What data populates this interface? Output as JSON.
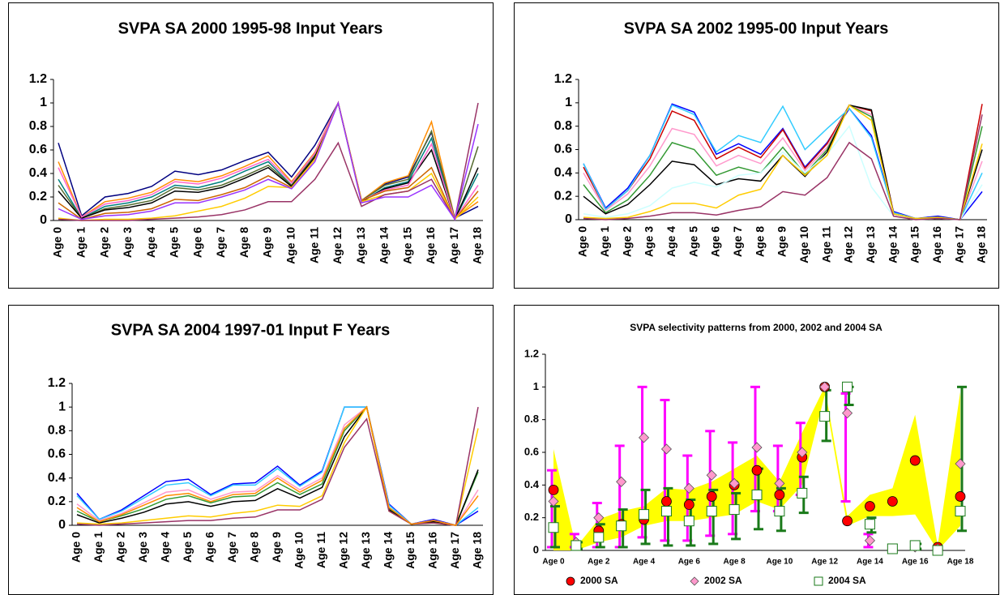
{
  "chart_data": [
    {
      "type": "line",
      "title": "SVPA SA 2000 1995-98 Input Years",
      "categories": [
        "Age 0",
        "Age 1",
        "Age 2",
        "Age 3",
        "Age 4",
        "Age 5",
        "Age 6",
        "Age 7",
        "Age 8",
        "Age 9",
        "Age 10",
        "Age 11",
        "Age 12",
        "Age 13",
        "Age 14",
        "Age 15",
        "Age 16",
        "Age 17",
        "Age 18"
      ],
      "ylim": [
        0,
        1.2
      ],
      "yticks": [
        0,
        0.2,
        0.4,
        0.6,
        0.8,
        1,
        1.2
      ],
      "grid": false,
      "series": [
        {
          "color": "#000080",
          "values": [
            0.66,
            0.04,
            0.2,
            0.23,
            0.29,
            0.42,
            0.39,
            0.43,
            0.51,
            0.58,
            0.37,
            0.64,
            1,
            0.17,
            0.31,
            0.37,
            0.75,
            0.02,
            0.12
          ]
        },
        {
          "color": "#ff8c00",
          "values": [
            0.5,
            0.03,
            0.16,
            0.19,
            0.24,
            0.35,
            0.33,
            0.38,
            0.46,
            0.55,
            0.33,
            0.58,
            1,
            0.17,
            0.32,
            0.38,
            0.84,
            0.02,
            0.16
          ]
        },
        {
          "color": "#008080",
          "values": [
            0.35,
            0.02,
            0.12,
            0.15,
            0.2,
            0.3,
            0.28,
            0.33,
            0.42,
            0.5,
            0.3,
            0.56,
            1,
            0.16,
            0.28,
            0.33,
            0.7,
            0.01,
            0.4
          ]
        },
        {
          "color": "#556b2f",
          "values": [
            0.3,
            0.02,
            0.1,
            0.13,
            0.17,
            0.28,
            0.26,
            0.3,
            0.38,
            0.47,
            0.3,
            0.55,
            1,
            0.17,
            0.3,
            0.35,
            0.76,
            0.02,
            0.63
          ]
        },
        {
          "color": "#000000",
          "values": [
            0.25,
            0.02,
            0.09,
            0.11,
            0.15,
            0.25,
            0.24,
            0.28,
            0.36,
            0.45,
            0.29,
            0.54,
            1,
            0.16,
            0.27,
            0.32,
            0.6,
            0.01,
            0.45
          ]
        },
        {
          "color": "#ff66cc",
          "values": [
            0.45,
            0.03,
            0.14,
            0.17,
            0.22,
            0.33,
            0.31,
            0.36,
            0.44,
            0.52,
            0.32,
            0.57,
            1,
            0.17,
            0.26,
            0.3,
            0.65,
            0.01,
            0.3
          ]
        },
        {
          "color": "#cc6600",
          "values": [
            0.15,
            0.01,
            0.06,
            0.07,
            0.1,
            0.18,
            0.17,
            0.22,
            0.28,
            0.38,
            0.28,
            0.52,
            1,
            0.17,
            0.25,
            0.28,
            0.45,
            0.01,
            0.25
          ]
        },
        {
          "color": "#ffcc00",
          "values": [
            0.02,
            0,
            0.01,
            0.01,
            0.02,
            0.04,
            0.08,
            0.12,
            0.19,
            0.29,
            0.28,
            0.52,
            1,
            0.16,
            0.22,
            0.25,
            0.4,
            0.01,
            0.2
          ]
        },
        {
          "color": "#993366",
          "values": [
            0.01,
            0,
            0,
            0,
            0.01,
            0.02,
            0.03,
            0.05,
            0.09,
            0.16,
            0.16,
            0.35,
            0.66,
            0.12,
            0.22,
            0.25,
            0.35,
            0.01,
            1
          ]
        },
        {
          "color": "#9933ff",
          "values": [
            0.1,
            0.01,
            0.04,
            0.05,
            0.08,
            0.15,
            0.15,
            0.2,
            0.26,
            0.35,
            0.27,
            0.5,
            1,
            0.15,
            0.2,
            0.2,
            0.3,
            0.01,
            0.82
          ]
        }
      ]
    },
    {
      "type": "line",
      "title": "SVPA SA 2002 1995-00 Input Years",
      "categories": [
        "Age 0",
        "Age 1",
        "Age 2",
        "Age 3",
        "Age 4",
        "Age 5",
        "Age 6",
        "Age 7",
        "Age 8",
        "Age 9",
        "Age 10",
        "Age 11",
        "Age 12",
        "Age 13",
        "Age 14",
        "Age 15",
        "Age 16",
        "Age 17",
        "Age 18"
      ],
      "ylim": [
        0,
        1.2
      ],
      "yticks": [
        0,
        0.2,
        0.4,
        0.6,
        0.8,
        1,
        1.2
      ],
      "grid": false,
      "series": [
        {
          "color": "#0000ff",
          "values": [
            0.48,
            0.1,
            0.27,
            0.55,
            0.99,
            0.92,
            0.56,
            0.65,
            0.56,
            0.78,
            0.45,
            0.66,
            0.95,
            0.72,
            0.07,
            0.01,
            0.03,
            0,
            0.24
          ]
        },
        {
          "color": "#cc0000",
          "values": [
            0.45,
            0.09,
            0.25,
            0.52,
            0.93,
            0.85,
            0.52,
            0.62,
            0.53,
            0.77,
            0.44,
            0.65,
            0.98,
            0.93,
            0.06,
            0.01,
            0.02,
            0,
            0.99
          ]
        },
        {
          "color": "#ff99cc",
          "values": [
            0.4,
            0.08,
            0.22,
            0.46,
            0.78,
            0.73,
            0.46,
            0.55,
            0.48,
            0.7,
            0.42,
            0.62,
            0.98,
            0.9,
            0.05,
            0.01,
            0.02,
            0,
            0.5
          ]
        },
        {
          "color": "#339933",
          "values": [
            0.3,
            0.06,
            0.17,
            0.38,
            0.66,
            0.6,
            0.38,
            0.45,
            0.4,
            0.62,
            0.39,
            0.6,
            0.98,
            0.88,
            0.05,
            0.01,
            0.02,
            0,
            0.8
          ]
        },
        {
          "color": "#000000",
          "values": [
            0.2,
            0.05,
            0.13,
            0.3,
            0.5,
            0.47,
            0.3,
            0.35,
            0.33,
            0.55,
            0.37,
            0.58,
            0.98,
            0.94,
            0.05,
            0.01,
            0.02,
            0,
            0.6
          ]
        },
        {
          "color": "#33ccff",
          "values": [
            0.48,
            0.09,
            0.25,
            0.55,
            0.98,
            0.9,
            0.58,
            0.72,
            0.66,
            0.97,
            0.6,
            0.78,
            0.95,
            0.7,
            0.06,
            0.01,
            0.02,
            0,
            0.4
          ]
        },
        {
          "color": "#ccffff",
          "values": [
            0.05,
            0.02,
            0.05,
            0.12,
            0.27,
            0.32,
            0.28,
            0.38,
            0.4,
            0.58,
            0.4,
            0.56,
            0.8,
            0.28,
            0.03,
            0,
            0.01,
            0,
            0.3
          ]
        },
        {
          "color": "#ffcc00",
          "values": [
            0.02,
            0.01,
            0.02,
            0.07,
            0.14,
            0.14,
            0.1,
            0.21,
            0.26,
            0.55,
            0.38,
            0.55,
            0.98,
            0.85,
            0.05,
            0.01,
            0.02,
            0,
            0.65
          ]
        },
        {
          "color": "#993366",
          "values": [
            0.01,
            0,
            0.01,
            0.03,
            0.06,
            0.06,
            0.04,
            0.08,
            0.11,
            0.24,
            0.21,
            0.36,
            0.66,
            0.52,
            0.03,
            0,
            0.01,
            0,
            0.9
          ]
        }
      ]
    },
    {
      "type": "line",
      "title": "SVPA SA 2004 1997-01 Input F Years",
      "categories": [
        "Age 0",
        "Age 1",
        "Age 2",
        "Age 3",
        "Age 4",
        "Age 5",
        "Age 6",
        "Age 7",
        "Age 8",
        "Age 9",
        "Age 10",
        "Age 11",
        "Age 12",
        "Age 13",
        "Age 14",
        "Age 15",
        "Age 16",
        "Age 17",
        "Age 18"
      ],
      "ylim": [
        0,
        1.2
      ],
      "yticks": [
        0,
        0.2,
        0.4,
        0.6,
        0.8,
        1,
        1.2
      ],
      "grid": false,
      "series": [
        {
          "color": "#0000ff",
          "values": [
            0.27,
            0.05,
            0.13,
            0.25,
            0.37,
            0.39,
            0.26,
            0.35,
            0.36,
            0.5,
            0.34,
            0.46,
            1,
            1,
            0.18,
            0.01,
            0.05,
            0,
            0.12
          ]
        },
        {
          "color": "#33ccff",
          "values": [
            0.25,
            0.05,
            0.12,
            0.23,
            0.34,
            0.36,
            0.25,
            0.34,
            0.34,
            0.48,
            0.33,
            0.45,
            1,
            1,
            0.17,
            0.01,
            0.04,
            0,
            0.15
          ]
        },
        {
          "color": "#ff99cc",
          "values": [
            0.18,
            0.04,
            0.1,
            0.19,
            0.28,
            0.3,
            0.22,
            0.28,
            0.29,
            0.42,
            0.3,
            0.4,
            0.85,
            1,
            0.15,
            0.01,
            0.04,
            0,
            0.3
          ]
        },
        {
          "color": "#339933",
          "values": [
            0.12,
            0.03,
            0.08,
            0.14,
            0.22,
            0.25,
            0.19,
            0.24,
            0.25,
            0.36,
            0.26,
            0.35,
            0.8,
            1,
            0.14,
            0.01,
            0.03,
            0,
            0.45
          ]
        },
        {
          "color": "#000000",
          "values": [
            0.09,
            0.02,
            0.06,
            0.11,
            0.18,
            0.2,
            0.16,
            0.2,
            0.21,
            0.31,
            0.23,
            0.32,
            0.75,
            1,
            0.13,
            0.01,
            0.03,
            0,
            0.47
          ]
        },
        {
          "color": "#ffcc00",
          "values": [
            0.02,
            0.01,
            0.02,
            0.04,
            0.06,
            0.08,
            0.07,
            0.1,
            0.12,
            0.17,
            0.16,
            0.25,
            0.7,
            1,
            0.12,
            0.01,
            0.02,
            0,
            0.82
          ]
        },
        {
          "color": "#993366",
          "values": [
            0.01,
            0,
            0.01,
            0.02,
            0.03,
            0.04,
            0.04,
            0.06,
            0.07,
            0.13,
            0.13,
            0.22,
            0.66,
            0.9,
            0.12,
            0.01,
            0.02,
            0,
            1
          ]
        },
        {
          "color": "#ff8c00",
          "values": [
            0.15,
            0.03,
            0.09,
            0.17,
            0.25,
            0.27,
            0.2,
            0.26,
            0.27,
            0.4,
            0.28,
            0.38,
            0.82,
            1,
            0.15,
            0.01,
            0.04,
            0,
            0.25
          ]
        }
      ]
    },
    {
      "type": "scatter",
      "title": "SVPA selectivity patterns from 2000, 2002 and 2004 SA",
      "categories": [
        "Age 0",
        null,
        "Age 2",
        null,
        "Age 4",
        null,
        "Age 6",
        null,
        "Age 8",
        null,
        "Age 10",
        null,
        "Age 12",
        null,
        "Age 14",
        null,
        "Age 16",
        null,
        "Age 18"
      ],
      "ylim": [
        0,
        1.2
      ],
      "yticks": [
        0,
        0.2,
        0.4,
        0.6,
        0.8,
        1,
        1.2
      ],
      "grid": false,
      "band": {
        "color": "#ffff00",
        "low": [
          0,
          0,
          0.05,
          0.08,
          0.15,
          0.18,
          0.18,
          0.2,
          0.22,
          0.3,
          0.25,
          0.4,
          0.95,
          0.15,
          0.21,
          0.21,
          0.22,
          0,
          0.15
        ],
        "high": [
          0.62,
          0.02,
          0.19,
          0.24,
          0.27,
          0.38,
          0.37,
          0.42,
          0.5,
          0.58,
          0.42,
          0.72,
          1,
          0.21,
          0.34,
          0.38,
          0.83,
          0.03,
          0.97
        ]
      },
      "series": [
        {
          "name": "2000 SA",
          "color": "#ff0000",
          "marker": "circle",
          "values": [
            0.37,
            0.03,
            0.12,
            0.16,
            0.19,
            0.3,
            0.28,
            0.33,
            0.4,
            0.49,
            0.34,
            0.57,
            1,
            0.18,
            0.27,
            0.3,
            0.55,
            0.02,
            0.33
          ]
        },
        {
          "name": "2002 SA",
          "color": "#ff99cc",
          "marker": "diamond",
          "error_color": "#ff00ff",
          "values": [
            0.3,
            0.05,
            0.2,
            0.42,
            0.69,
            0.62,
            0.38,
            0.46,
            0.41,
            0.63,
            0.41,
            0.6,
            1,
            0.84,
            0.06,
            0.01,
            0.02,
            0.01,
            0.53
          ],
          "low": [
            0.02,
            0.02,
            0.02,
            0.02,
            0.08,
            0.06,
            0.06,
            0.09,
            0.1,
            0.24,
            0.24,
            0.34,
            null,
            0.3,
            0.02,
            null,
            null,
            null,
            null
          ],
          "high": [
            0.49,
            0.1,
            0.29,
            0.64,
            1,
            0.92,
            0.58,
            0.73,
            0.66,
            1,
            0.64,
            0.78,
            null,
            0.96,
            0.1,
            null,
            null,
            null,
            null
          ]
        },
        {
          "name": "2004 SA",
          "color": "#ffffff",
          "marker": "square",
          "error_color": "#1a7a1a",
          "values": [
            0.14,
            0.03,
            0.08,
            0.15,
            0.22,
            0.24,
            0.18,
            0.24,
            0.25,
            0.34,
            0.24,
            0.35,
            0.82,
            1,
            0.16,
            0.01,
            0.03,
            0,
            0.24
          ],
          "low": [
            0.02,
            0.01,
            0.02,
            0.02,
            0.04,
            0.03,
            0.03,
            0.04,
            0.07,
            0.13,
            0.12,
            0.23,
            0.67,
            0.89,
            0.11,
            null,
            0.01,
            null,
            0.12
          ],
          "high": [
            0.27,
            0.05,
            0.16,
            0.25,
            0.37,
            0.38,
            0.31,
            0.37,
            0.35,
            0.5,
            0.38,
            0.45,
            0.98,
            1,
            0.2,
            null,
            0.04,
            null,
            1
          ]
        }
      ]
    }
  ]
}
